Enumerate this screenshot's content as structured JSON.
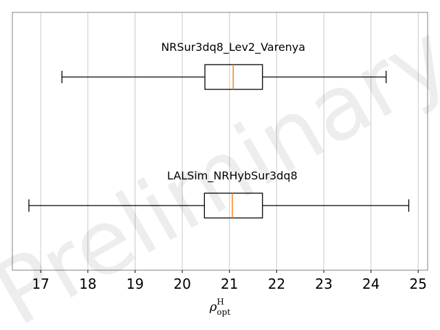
{
  "chart_data": {
    "type": "boxplot",
    "orientation": "horizontal",
    "xlabel": {
      "symbol": "ρ",
      "superscript": "H",
      "subscript": "opt"
    },
    "xlim": [
      16.4,
      25.2
    ],
    "xticks": [
      17,
      18,
      19,
      20,
      21,
      22,
      23,
      24,
      25
    ],
    "grid": "vertical",
    "watermark": "Preliminary",
    "colors": {
      "box": "#000000",
      "median": "#ff7f0e",
      "grid": "#c8c8c8",
      "frame": "#7f7f7f"
    },
    "series": [
      {
        "name": "NRSur3dq8_Lev2_Varenya",
        "whisker_low": 17.45,
        "q1": 20.48,
        "median": 21.08,
        "q3": 21.7,
        "whisker_high": 24.32
      },
      {
        "name": "LALSim_NRHybSur3dq8",
        "whisker_low": 16.75,
        "q1": 20.47,
        "median": 21.06,
        "q3": 21.7,
        "whisker_high": 24.8
      }
    ]
  }
}
